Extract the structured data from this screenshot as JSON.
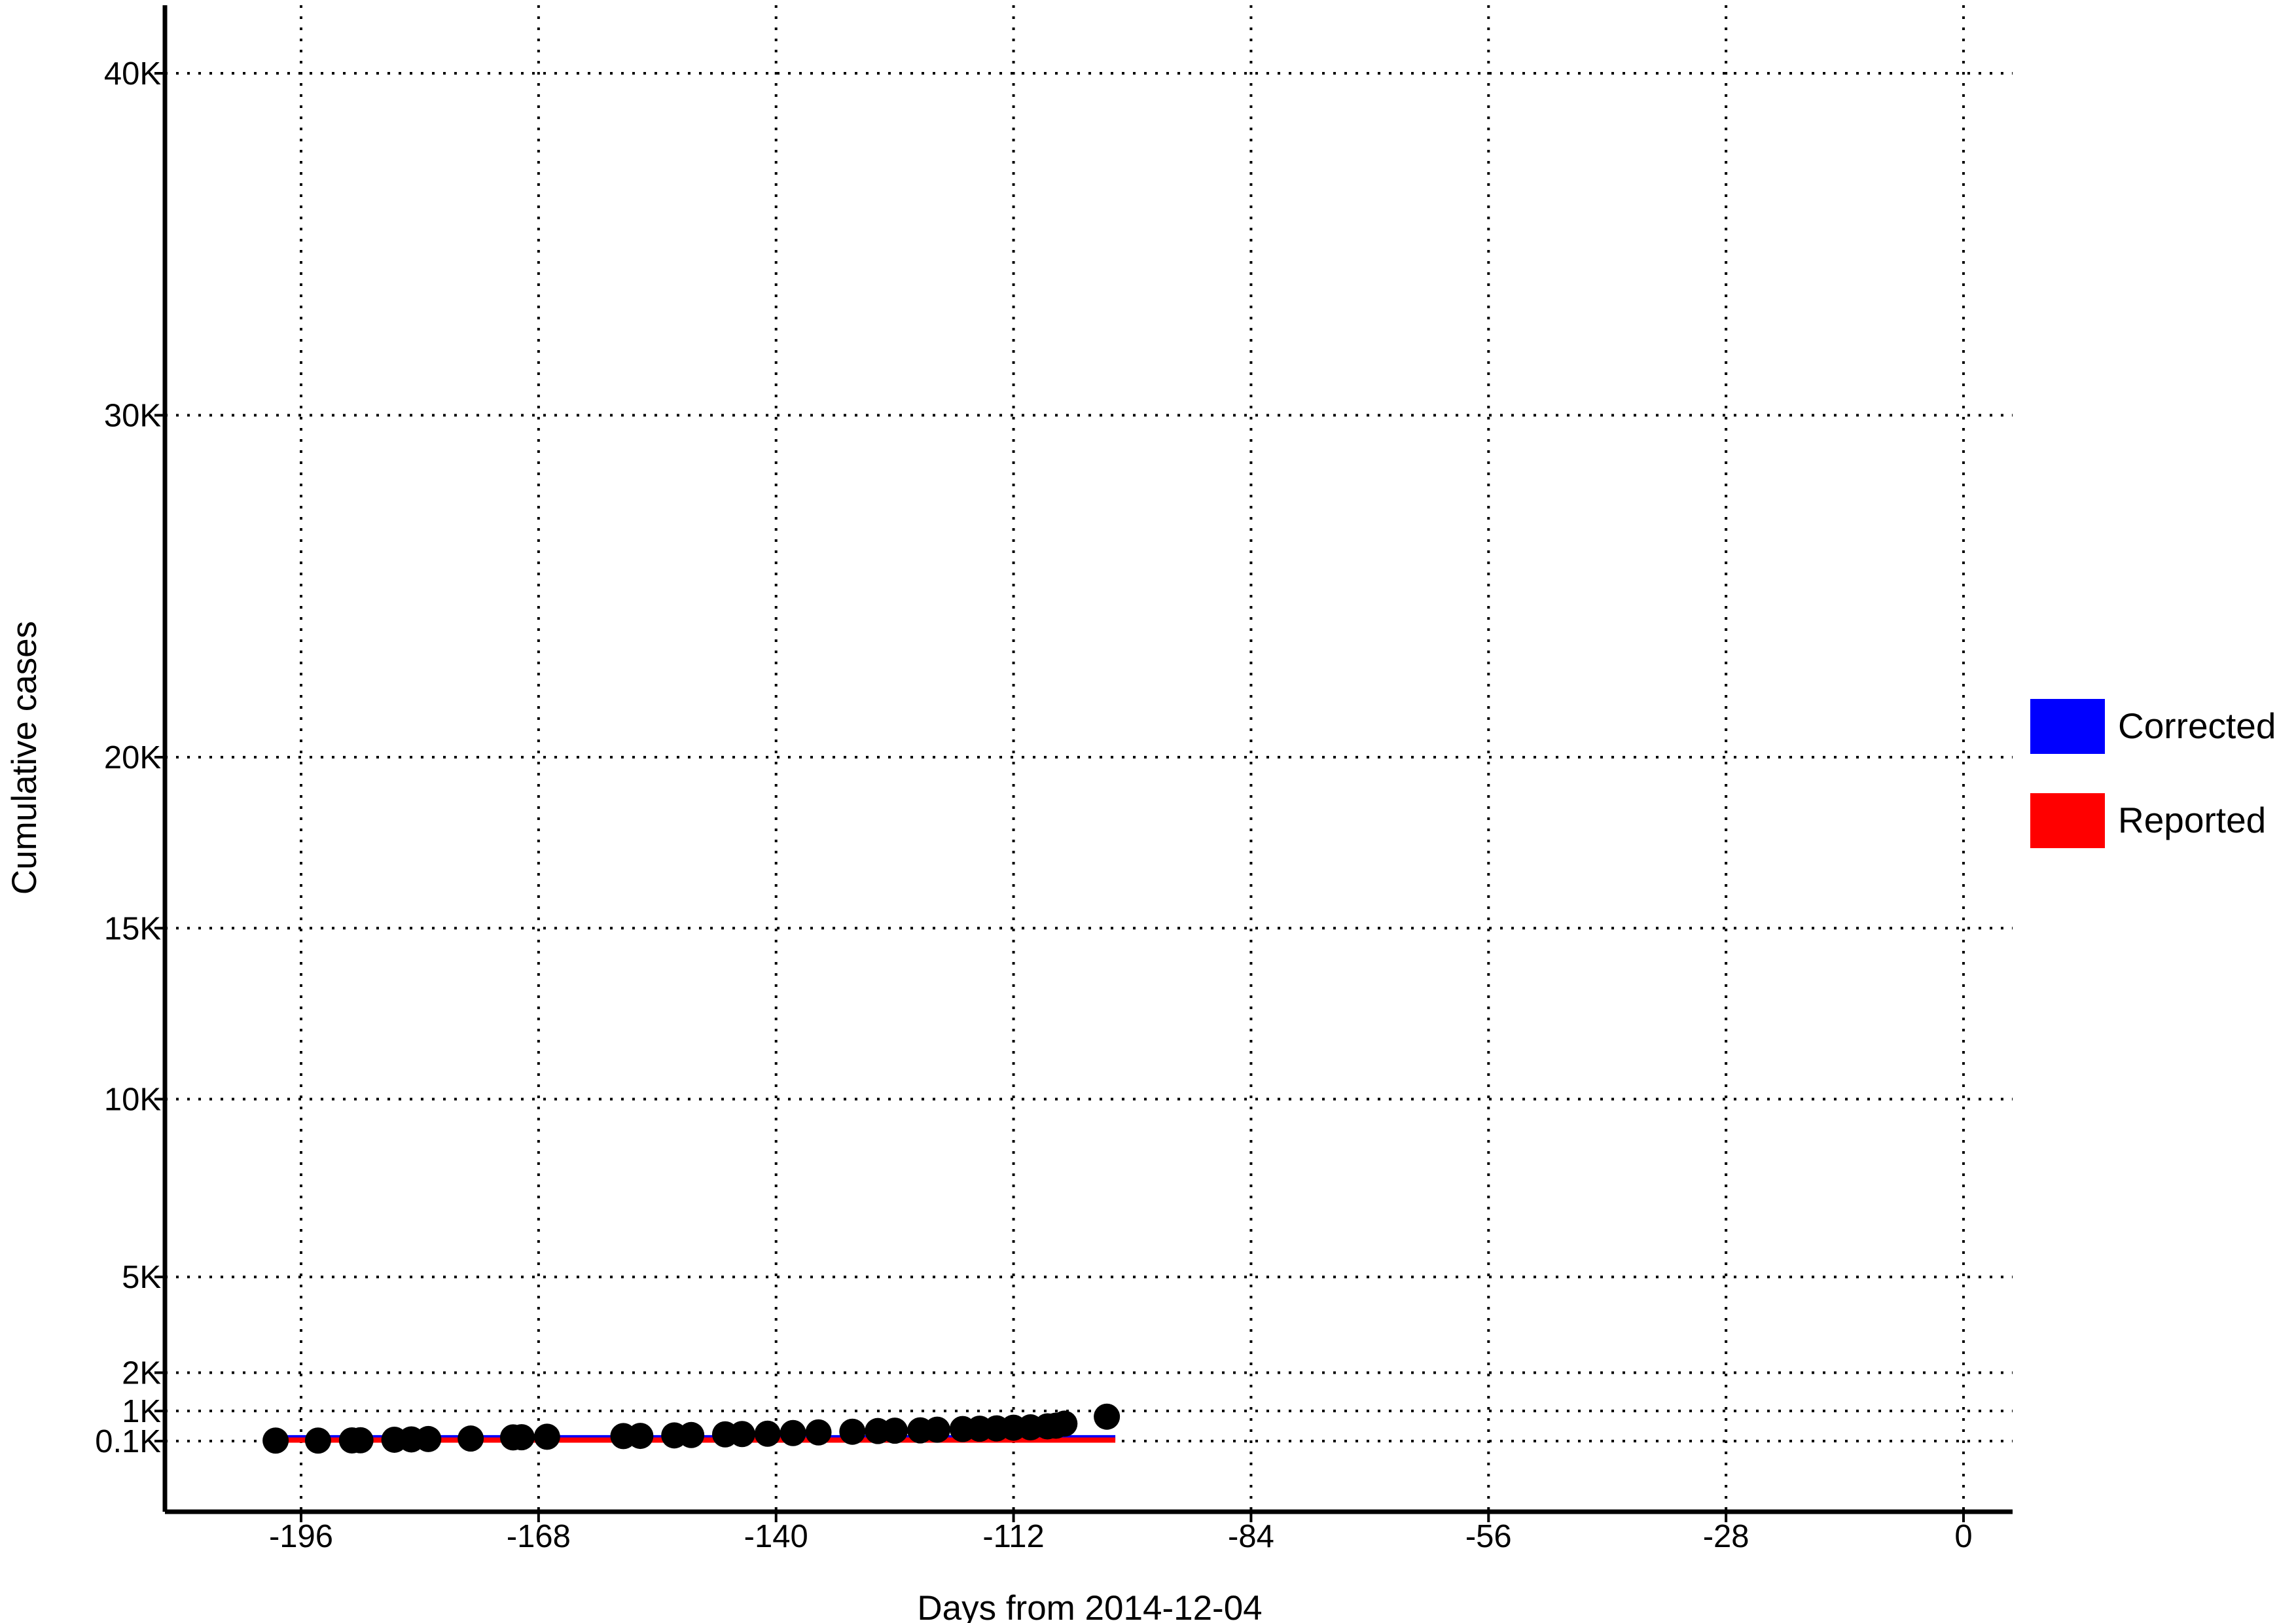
{
  "chart_data": {
    "type": "line",
    "xlabel": "Days from 2014-12-04",
    "ylabel": "Cumulative cases",
    "xlim": [
      -206,
      4
    ],
    "ylim_ticks_note": "nonlinear",
    "x_ticks": [
      -196,
      -168,
      -140,
      -112,
      -84,
      -56,
      -28,
      0
    ],
    "x_tick_labels": [
      "-196",
      "-168",
      "-140",
      "-112",
      "-84",
      "-56",
      "-28",
      "0"
    ],
    "y_ticks": [
      100,
      1000,
      2000,
      5000,
      10000,
      15000,
      20000,
      30000,
      40000
    ],
    "y_tick_labels": [
      "0.1K",
      "1K",
      "2K",
      "5K",
      "10K",
      "15K",
      "20K",
      "30K",
      "40K"
    ],
    "y_tick_positions": [
      0.0,
      0.022,
      0.05,
      0.12,
      0.25,
      0.375,
      0.5,
      0.75,
      1.0
    ],
    "grid": true,
    "legend_position": "right",
    "series": [
      {
        "name": "Corrected",
        "color": "#0000ff",
        "x": [
          -200,
          -100
        ],
        "y": [
          200,
          200
        ]
      },
      {
        "name": "Reported",
        "color": "#ff0000",
        "x": [
          -200,
          -100
        ],
        "y": [
          130,
          130
        ]
      }
    ],
    "observed": {
      "color": "#000000",
      "x": [
        -199,
        -194,
        -190,
        -189,
        -185,
        -183,
        -181,
        -176,
        -171,
        -170,
        -167,
        -158,
        -156,
        -152,
        -150,
        -146,
        -144,
        -141,
        -138,
        -135,
        -131,
        -128,
        -126,
        -123,
        -121,
        -118,
        -116,
        -114,
        -112,
        -110,
        -108,
        -107,
        -106,
        -101
      ],
      "y": [
        115,
        115,
        120,
        125,
        140,
        150,
        160,
        175,
        210,
        215,
        230,
        250,
        255,
        270,
        280,
        300,
        310,
        320,
        340,
        360,
        380,
        400,
        410,
        420,
        440,
        460,
        470,
        480,
        500,
        510,
        540,
        560,
        620,
        830
      ]
    }
  }
}
